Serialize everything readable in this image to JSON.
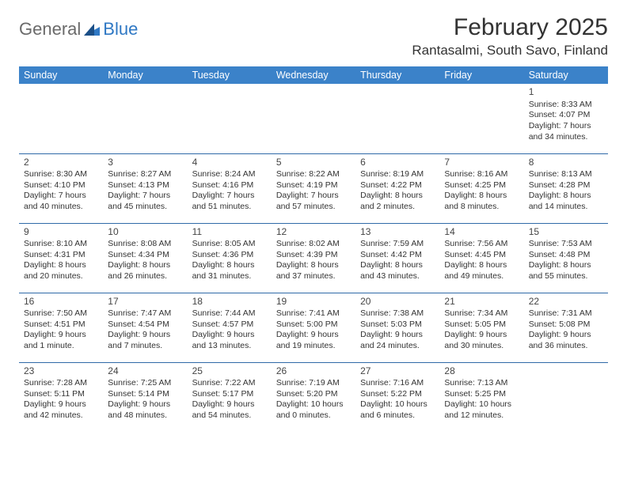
{
  "brand": {
    "part1": "General",
    "part2": "Blue"
  },
  "title": "February 2025",
  "location": "Rantasalmi, South Savo, Finland",
  "colors": {
    "header_bg": "#3b82c9",
    "header_text": "#ffffff",
    "rule": "#2f6aa8",
    "body_text": "#333333",
    "logo_gray": "#6a6a6a",
    "logo_blue": "#2f78c4"
  },
  "weekdays": [
    "Sunday",
    "Monday",
    "Tuesday",
    "Wednesday",
    "Thursday",
    "Friday",
    "Saturday"
  ],
  "weeks": [
    [
      null,
      null,
      null,
      null,
      null,
      null,
      {
        "d": "1",
        "sr": "Sunrise: 8:33 AM",
        "ss": "Sunset: 4:07 PM",
        "dl1": "Daylight: 7 hours",
        "dl2": "and 34 minutes."
      }
    ],
    [
      {
        "d": "2",
        "sr": "Sunrise: 8:30 AM",
        "ss": "Sunset: 4:10 PM",
        "dl1": "Daylight: 7 hours",
        "dl2": "and 40 minutes."
      },
      {
        "d": "3",
        "sr": "Sunrise: 8:27 AM",
        "ss": "Sunset: 4:13 PM",
        "dl1": "Daylight: 7 hours",
        "dl2": "and 45 minutes."
      },
      {
        "d": "4",
        "sr": "Sunrise: 8:24 AM",
        "ss": "Sunset: 4:16 PM",
        "dl1": "Daylight: 7 hours",
        "dl2": "and 51 minutes."
      },
      {
        "d": "5",
        "sr": "Sunrise: 8:22 AM",
        "ss": "Sunset: 4:19 PM",
        "dl1": "Daylight: 7 hours",
        "dl2": "and 57 minutes."
      },
      {
        "d": "6",
        "sr": "Sunrise: 8:19 AM",
        "ss": "Sunset: 4:22 PM",
        "dl1": "Daylight: 8 hours",
        "dl2": "and 2 minutes."
      },
      {
        "d": "7",
        "sr": "Sunrise: 8:16 AM",
        "ss": "Sunset: 4:25 PM",
        "dl1": "Daylight: 8 hours",
        "dl2": "and 8 minutes."
      },
      {
        "d": "8",
        "sr": "Sunrise: 8:13 AM",
        "ss": "Sunset: 4:28 PM",
        "dl1": "Daylight: 8 hours",
        "dl2": "and 14 minutes."
      }
    ],
    [
      {
        "d": "9",
        "sr": "Sunrise: 8:10 AM",
        "ss": "Sunset: 4:31 PM",
        "dl1": "Daylight: 8 hours",
        "dl2": "and 20 minutes."
      },
      {
        "d": "10",
        "sr": "Sunrise: 8:08 AM",
        "ss": "Sunset: 4:34 PM",
        "dl1": "Daylight: 8 hours",
        "dl2": "and 26 minutes."
      },
      {
        "d": "11",
        "sr": "Sunrise: 8:05 AM",
        "ss": "Sunset: 4:36 PM",
        "dl1": "Daylight: 8 hours",
        "dl2": "and 31 minutes."
      },
      {
        "d": "12",
        "sr": "Sunrise: 8:02 AM",
        "ss": "Sunset: 4:39 PM",
        "dl1": "Daylight: 8 hours",
        "dl2": "and 37 minutes."
      },
      {
        "d": "13",
        "sr": "Sunrise: 7:59 AM",
        "ss": "Sunset: 4:42 PM",
        "dl1": "Daylight: 8 hours",
        "dl2": "and 43 minutes."
      },
      {
        "d": "14",
        "sr": "Sunrise: 7:56 AM",
        "ss": "Sunset: 4:45 PM",
        "dl1": "Daylight: 8 hours",
        "dl2": "and 49 minutes."
      },
      {
        "d": "15",
        "sr": "Sunrise: 7:53 AM",
        "ss": "Sunset: 4:48 PM",
        "dl1": "Daylight: 8 hours",
        "dl2": "and 55 minutes."
      }
    ],
    [
      {
        "d": "16",
        "sr": "Sunrise: 7:50 AM",
        "ss": "Sunset: 4:51 PM",
        "dl1": "Daylight: 9 hours",
        "dl2": "and 1 minute."
      },
      {
        "d": "17",
        "sr": "Sunrise: 7:47 AM",
        "ss": "Sunset: 4:54 PM",
        "dl1": "Daylight: 9 hours",
        "dl2": "and 7 minutes."
      },
      {
        "d": "18",
        "sr": "Sunrise: 7:44 AM",
        "ss": "Sunset: 4:57 PM",
        "dl1": "Daylight: 9 hours",
        "dl2": "and 13 minutes."
      },
      {
        "d": "19",
        "sr": "Sunrise: 7:41 AM",
        "ss": "Sunset: 5:00 PM",
        "dl1": "Daylight: 9 hours",
        "dl2": "and 19 minutes."
      },
      {
        "d": "20",
        "sr": "Sunrise: 7:38 AM",
        "ss": "Sunset: 5:03 PM",
        "dl1": "Daylight: 9 hours",
        "dl2": "and 24 minutes."
      },
      {
        "d": "21",
        "sr": "Sunrise: 7:34 AM",
        "ss": "Sunset: 5:05 PM",
        "dl1": "Daylight: 9 hours",
        "dl2": "and 30 minutes."
      },
      {
        "d": "22",
        "sr": "Sunrise: 7:31 AM",
        "ss": "Sunset: 5:08 PM",
        "dl1": "Daylight: 9 hours",
        "dl2": "and 36 minutes."
      }
    ],
    [
      {
        "d": "23",
        "sr": "Sunrise: 7:28 AM",
        "ss": "Sunset: 5:11 PM",
        "dl1": "Daylight: 9 hours",
        "dl2": "and 42 minutes."
      },
      {
        "d": "24",
        "sr": "Sunrise: 7:25 AM",
        "ss": "Sunset: 5:14 PM",
        "dl1": "Daylight: 9 hours",
        "dl2": "and 48 minutes."
      },
      {
        "d": "25",
        "sr": "Sunrise: 7:22 AM",
        "ss": "Sunset: 5:17 PM",
        "dl1": "Daylight: 9 hours",
        "dl2": "and 54 minutes."
      },
      {
        "d": "26",
        "sr": "Sunrise: 7:19 AM",
        "ss": "Sunset: 5:20 PM",
        "dl1": "Daylight: 10 hours",
        "dl2": "and 0 minutes."
      },
      {
        "d": "27",
        "sr": "Sunrise: 7:16 AM",
        "ss": "Sunset: 5:22 PM",
        "dl1": "Daylight: 10 hours",
        "dl2": "and 6 minutes."
      },
      {
        "d": "28",
        "sr": "Sunrise: 7:13 AM",
        "ss": "Sunset: 5:25 PM",
        "dl1": "Daylight: 10 hours",
        "dl2": "and 12 minutes."
      },
      null
    ]
  ]
}
